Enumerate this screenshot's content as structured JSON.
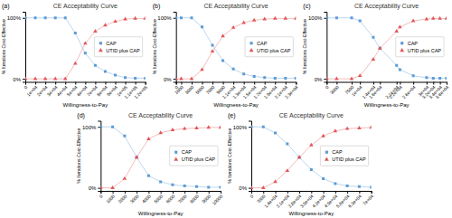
{
  "chart_data": [
    {
      "type": "line",
      "title": "CE Acceptability Curve",
      "xlabel": "Willingness-to-Pay",
      "ylabel": "% Iterations Cost-Effective",
      "annotations": [
        "(a)"
      ],
      "x": [
        0,
        10000,
        20000,
        30000,
        40000,
        50000,
        60000,
        70000,
        80000,
        90000,
        100000,
        110000,
        120000
      ],
      "series": [
        {
          "name": "CAP",
          "color": "#5b9bd5",
          "marker": "square",
          "values": [
            1.0,
            1.0,
            1.0,
            1.0,
            1.0,
            0.75,
            0.42,
            0.22,
            0.12,
            0.06,
            0.02,
            0.01,
            0.01
          ]
        },
        {
          "name": "UTID plus CAP",
          "color": "#e15759",
          "marker": "triangle",
          "values": [
            0.0,
            0.0,
            0.0,
            0.0,
            0.0,
            0.25,
            0.58,
            0.78,
            0.88,
            0.94,
            0.98,
            0.99,
            0.99
          ]
        }
      ],
      "xlim": [
        0,
        120000
      ],
      "xticks": [
        0,
        {
          "value": 10000,
          "label": "1e+04"
        },
        {
          "value": 20000,
          "label": "2e+04"
        },
        {
          "value": 30000,
          "label": "3e+04"
        },
        {
          "value": 40000,
          "label": "4e+04"
        },
        {
          "value": 50000,
          "label": "5e+04"
        },
        {
          "value": 60000,
          "label": "6e+04"
        },
        {
          "value": 70000,
          "label": "7e+04"
        },
        {
          "value": 80000,
          "label": "8e+04"
        },
        {
          "value": 90000,
          "label": "9e+04"
        },
        {
          "value": 100000,
          "label": "1e+05"
        },
        {
          "value": 110000,
          "label": "1.1e+05"
        },
        {
          "value": 120000,
          "label": "1.2e+05"
        }
      ],
      "ylim": [
        -0.05,
        1.1
      ],
      "yticks": [
        {
          "value": 0,
          "label": "0%"
        },
        {
          "value": 1.0,
          "label": "100%"
        }
      ],
      "legend": "center right",
      "grid": false
    },
    {
      "type": "line",
      "title": "CE Acceptability Curve",
      "xlabel": "Willingness-to-Pay",
      "ylabel": "% Iterations Cost-Effective",
      "annotations": [
        "(b)"
      ],
      "x": [
        0,
        1000,
        3000,
        5000,
        7000,
        9000,
        11000,
        13000,
        15000,
        17000,
        19000,
        21000,
        23000
      ],
      "series": [
        {
          "name": "CAP",
          "color": "#5b9bd5",
          "marker": "square",
          "values": [
            1.0,
            1.0,
            1.0,
            0.85,
            0.55,
            0.3,
            0.16,
            0.08,
            0.04,
            0.02,
            0.01,
            0.01,
            0.01
          ]
        },
        {
          "name": "UTID plus CAP",
          "color": "#e15759",
          "marker": "triangle",
          "values": [
            0.0,
            0.0,
            0.0,
            0.15,
            0.45,
            0.7,
            0.84,
            0.92,
            0.96,
            0.98,
            0.99,
            0.99,
            0.99
          ]
        }
      ],
      "xlim": [
        0,
        23000
      ],
      "xticks": [
        0,
        1000,
        3000,
        5000,
        7000,
        9000,
        {
          "value": 11000,
          "label": "1.1e+04"
        },
        {
          "value": 13000,
          "label": "1.3e+04"
        },
        {
          "value": 15000,
          "label": "1.5e+04"
        },
        {
          "value": 17000,
          "label": "1.7e+04"
        },
        {
          "value": 19000,
          "label": "1.9e+04"
        },
        {
          "value": 21000,
          "label": "2.1e+04"
        },
        {
          "value": 23000,
          "label": "2.3e+04"
        }
      ],
      "ylim": [
        -0.05,
        1.1
      ],
      "yticks": [
        {
          "value": 0,
          "label": "0%"
        },
        {
          "value": 1.0,
          "label": "100%"
        }
      ],
      "legend": "center right",
      "grid": false
    },
    {
      "type": "line",
      "title": "CE Acceptability Curve",
      "xlabel": "Willingness-to-Pay",
      "ylabel": "% Iterations Cost-Effective",
      "annotations": [
        "(c)"
      ],
      "x": [
        0,
        3000,
        7500,
        10000,
        14000,
        16000,
        21000,
        22000,
        26000,
        30000,
        32000,
        34000,
        36000
      ],
      "series": [
        {
          "name": "CAP",
          "color": "#5b9bd5",
          "marker": "square",
          "values": [
            1.0,
            1.0,
            1.0,
            0.95,
            0.68,
            0.5,
            0.22,
            0.15,
            0.05,
            0.02,
            0.01,
            0.01,
            0.01
          ]
        },
        {
          "name": "UTID plus CAP",
          "color": "#e15759",
          "marker": "triangle",
          "values": [
            0.0,
            0.0,
            0.0,
            0.05,
            0.32,
            0.5,
            0.78,
            0.85,
            0.95,
            0.98,
            0.99,
            0.99,
            0.99
          ]
        }
      ],
      "xlim": [
        0,
        36000
      ],
      "xticks": [
        0,
        3000,
        7500,
        {
          "value": 10000,
          "label": "1e+04"
        },
        {
          "value": 14000,
          "label": "1.4e+04"
        },
        {
          "value": 16000,
          "label": "1.6e+04"
        },
        {
          "value": 21000,
          "label": "2.1e+04"
        },
        {
          "value": 22000,
          "label": "2.2e+04"
        },
        {
          "value": 26000,
          "label": "2.6e+04"
        },
        {
          "value": 30000,
          "label": "3e+04"
        },
        {
          "value": 32000,
          "label": "3.2e+04"
        },
        {
          "value": 34000,
          "label": "3.4e+04"
        },
        {
          "value": 36000,
          "label": "3.6e+04"
        }
      ],
      "ylim": [
        -0.05,
        1.1
      ],
      "yticks": [
        {
          "value": 0,
          "label": "0%"
        },
        {
          "value": 1.0,
          "label": "100%"
        }
      ],
      "legend": "center right",
      "grid": false
    },
    {
      "type": "line",
      "title": "CE Acceptability Curve",
      "xlabel": "Willingness-to-Pay",
      "ylabel": "% Iterations Cost-Effective",
      "annotations": [
        "(d)"
      ],
      "x": [
        0,
        1000,
        2000,
        3000,
        4000,
        5000,
        6000,
        7000,
        8000,
        9000,
        10000
      ],
      "series": [
        {
          "name": "CAP",
          "color": "#5b9bd5",
          "marker": "square",
          "values": [
            1.0,
            1.0,
            0.85,
            0.5,
            0.2,
            0.1,
            0.05,
            0.03,
            0.02,
            0.01,
            0.01
          ]
        },
        {
          "name": "UTID plus CAP",
          "color": "#e15759",
          "marker": "triangle",
          "values": [
            0.0,
            0.0,
            0.15,
            0.5,
            0.8,
            0.9,
            0.95,
            0.97,
            0.98,
            0.99,
            0.99
          ]
        }
      ],
      "xlim": [
        0,
        10000
      ],
      "xticks": [
        0,
        1000,
        2000,
        3000,
        4000,
        5000,
        6000,
        7000,
        8000,
        9000,
        10000
      ],
      "ylim": [
        -0.05,
        1.1
      ],
      "yticks": [
        {
          "value": 0,
          "label": "0%"
        },
        {
          "value": 1.0,
          "label": "100%"
        }
      ],
      "legend": "center right",
      "grid": false
    },
    {
      "type": "line",
      "title": "CE Acceptability Curve",
      "xlabel": "Willingness-to-Pay",
      "ylabel": "% Iterations Cost-Effective",
      "annotations": [
        "(e)"
      ],
      "x": [
        0,
        7000,
        14000,
        21000,
        28000,
        35000,
        42000,
        49000,
        56000,
        63000,
        70000
      ],
      "series": [
        {
          "name": "CAP",
          "color": "#5b9bd5",
          "marker": "square",
          "values": [
            1.0,
            1.0,
            0.9,
            0.72,
            0.5,
            0.3,
            0.15,
            0.07,
            0.03,
            0.02,
            0.01
          ]
        },
        {
          "name": "UTID plus CAP",
          "color": "#e15759",
          "marker": "triangle",
          "values": [
            0.0,
            0.0,
            0.1,
            0.28,
            0.5,
            0.7,
            0.85,
            0.93,
            0.97,
            0.98,
            0.99
          ]
        }
      ],
      "xlim": [
        0,
        70000
      ],
      "xticks": [
        0,
        7000,
        {
          "value": 14000,
          "label": "1.4e+04"
        },
        {
          "value": 21000,
          "label": "2.1e+04"
        },
        {
          "value": 28000,
          "label": "2.8e+04"
        },
        {
          "value": 35000,
          "label": "3.5e+04"
        },
        {
          "value": 42000,
          "label": "4.2e+04"
        },
        {
          "value": 49000,
          "label": "4.9e+04"
        },
        {
          "value": 56000,
          "label": "5.6e+04"
        },
        {
          "value": 63000,
          "label": "6.3e+04"
        },
        {
          "value": 70000,
          "label": "7e+04"
        }
      ],
      "ylim": [
        -0.05,
        1.1
      ],
      "yticks": [
        {
          "value": 0,
          "label": "0%"
        },
        {
          "value": 1.0,
          "label": "100%"
        }
      ],
      "legend": "center right",
      "grid": false
    }
  ]
}
